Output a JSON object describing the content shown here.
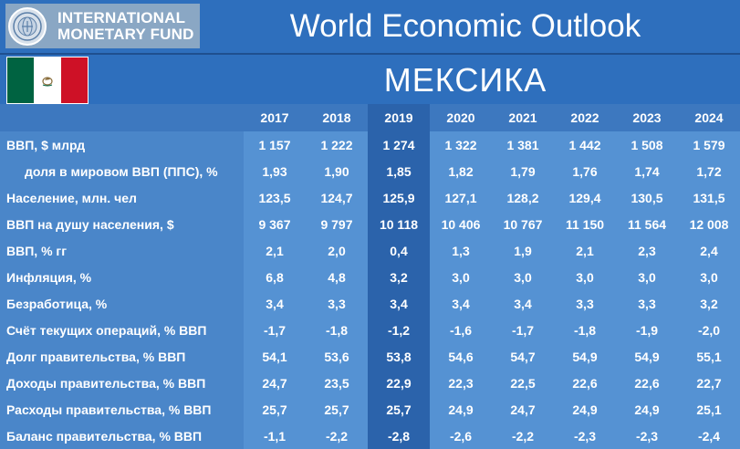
{
  "header": {
    "logo_line1": "INTERNATIONAL",
    "logo_line2": "MONETARY FUND",
    "title": "World Economic Outlook",
    "seal_icon": "imf-seal-icon"
  },
  "country": {
    "name": "МЕКСИКА",
    "flag_icon": "mexico-flag-icon",
    "flag_colors": [
      "#006341",
      "#ffffff",
      "#ce1126"
    ]
  },
  "colors": {
    "background": "#2e6fbd",
    "table": "#5592d3",
    "highlight_column": "#2b63ab"
  },
  "table": {
    "years": [
      "2017",
      "2018",
      "2019",
      "2020",
      "2021",
      "2022",
      "2023",
      "2024"
    ],
    "highlight_year": "2019",
    "rows": [
      {
        "label": "ВВП, $ млрд",
        "values": [
          "1 157",
          "1 222",
          "1 274",
          "1 322",
          "1 381",
          "1 442",
          "1 508",
          "1 579"
        ]
      },
      {
        "label": "доля в мировом ВВП (ППС), %",
        "values": [
          "1,93",
          "1,90",
          "1,85",
          "1,82",
          "1,79",
          "1,76",
          "1,74",
          "1,72"
        ]
      },
      {
        "label": "Население, млн. чел",
        "values": [
          "123,5",
          "124,7",
          "125,9",
          "127,1",
          "128,2",
          "129,4",
          "130,5",
          "131,5"
        ]
      },
      {
        "label": "ВВП на душу населения, $",
        "values": [
          "9 367",
          "9 797",
          "10 118",
          "10 406",
          "10 767",
          "11 150",
          "11 564",
          "12 008"
        ]
      },
      {
        "label": "ВВП, % гг",
        "values": [
          "2,1",
          "2,0",
          "0,4",
          "1,3",
          "1,9",
          "2,1",
          "2,3",
          "2,4"
        ]
      },
      {
        "label": "Инфляция, %",
        "values": [
          "6,8",
          "4,8",
          "3,2",
          "3,0",
          "3,0",
          "3,0",
          "3,0",
          "3,0"
        ]
      },
      {
        "label": "Безработица, %",
        "values": [
          "3,4",
          "3,3",
          "3,4",
          "3,4",
          "3,4",
          "3,3",
          "3,3",
          "3,2"
        ]
      },
      {
        "label": "Счёт текущих операций, % ВВП",
        "values": [
          "-1,7",
          "-1,8",
          "-1,2",
          "-1,6",
          "-1,7",
          "-1,8",
          "-1,9",
          "-2,0"
        ]
      },
      {
        "label": "Долг правительства, % ВВП",
        "values": [
          "54,1",
          "53,6",
          "53,8",
          "54,6",
          "54,7",
          "54,9",
          "54,9",
          "55,1"
        ]
      },
      {
        "label": "Доходы правительства, % ВВП",
        "values": [
          "24,7",
          "23,5",
          "22,9",
          "22,3",
          "22,5",
          "22,6",
          "22,6",
          "22,7"
        ]
      },
      {
        "label": "Расходы правительства, % ВВП",
        "values": [
          "25,7",
          "25,7",
          "25,7",
          "24,9",
          "24,7",
          "24,9",
          "24,9",
          "25,1"
        ]
      },
      {
        "label": "Баланс правительства, % ВВП",
        "values": [
          "-1,1",
          "-2,2",
          "-2,8",
          "-2,6",
          "-2,2",
          "-2,3",
          "-2,3",
          "-2,4"
        ]
      }
    ]
  }
}
